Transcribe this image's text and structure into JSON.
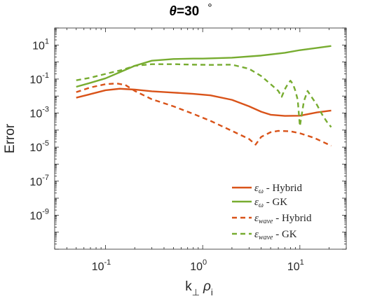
{
  "chart_data": {
    "type": "line",
    "title_var": "θ",
    "title_value": "=30",
    "title_unit": "°",
    "xlabel": "k",
    "xlabel_sub1": "⊥",
    "xlabel_rho": "ρ",
    "xlabel_sub2": "i",
    "ylabel": "Error",
    "xscale": "log",
    "yscale": "log",
    "xlim": [
      0.03,
      30
    ],
    "ylim": [
      1e-11,
      100
    ],
    "x_ticks": [
      {
        "value": 0.1,
        "base": "10",
        "exp": "-1"
      },
      {
        "value": 1,
        "base": "10",
        "exp": "0"
      },
      {
        "value": 10,
        "base": "10",
        "exp": "1"
      }
    ],
    "y_ticks": [
      {
        "value": 10,
        "base": "10",
        "exp": "1"
      },
      {
        "value": 0.1,
        "base": "10",
        "exp": "-1"
      },
      {
        "value": 0.001,
        "base": "10",
        "exp": "-3"
      },
      {
        "value": 1e-05,
        "base": "10",
        "exp": "-5"
      },
      {
        "value": 1e-07,
        "base": "10",
        "exp": "-7"
      },
      {
        "value": 1e-09,
        "base": "10",
        "exp": "-9"
      }
    ],
    "legend_position": "bottom-right",
    "grid": false,
    "series": [
      {
        "name": "ε_ω - Hybrid",
        "name_sym": "ε",
        "name_sub": "ω",
        "name_rest": " - Hybrid",
        "color": "#D95319",
        "dash": "solid",
        "x": [
          0.05,
          0.07,
          0.1,
          0.14,
          0.2,
          0.3,
          0.5,
          0.8,
          1.2,
          2,
          3,
          4,
          5,
          7,
          10,
          15,
          21
        ],
        "y": [
          0.008,
          0.013,
          0.022,
          0.027,
          0.024,
          0.019,
          0.016,
          0.0135,
          0.011,
          0.006,
          0.0025,
          0.0012,
          0.0008,
          0.00068,
          0.0007,
          0.0011,
          0.0014
        ]
      },
      {
        "name": "ε_ω - GK",
        "name_sym": "ε",
        "name_sub": "ω",
        "name_rest": " - GK",
        "color": "#77AC30",
        "dash": "solid",
        "x": [
          0.05,
          0.07,
          0.1,
          0.14,
          0.2,
          0.3,
          0.5,
          0.8,
          1,
          2,
          4,
          7,
          10,
          15,
          21
        ],
        "y": [
          0.035,
          0.06,
          0.11,
          0.25,
          0.6,
          1.2,
          1.5,
          1.6,
          1.6,
          1.8,
          2.4,
          3.5,
          5.0,
          6.8,
          8.8
        ]
      },
      {
        "name": "ε_wave - Hybrid",
        "name_sym": "ε",
        "name_sub": "wave",
        "name_rest": " - Hybrid",
        "color": "#D95319",
        "dash": "dashed",
        "x": [
          0.05,
          0.07,
          0.1,
          0.13,
          0.16,
          0.2,
          0.3,
          0.5,
          0.8,
          1.2,
          2,
          3,
          3.5,
          4,
          5,
          6,
          8,
          10,
          14,
          21
        ],
        "y": [
          0.017,
          0.032,
          0.05,
          0.055,
          0.045,
          0.02,
          0.0065,
          0.0025,
          0.0009,
          0.00035,
          9e-05,
          3e-05,
          1.4e-05,
          4e-05,
          7.5e-05,
          9e-05,
          8.5e-05,
          6.5e-05,
          3.5e-05,
          1.2e-05
        ]
      },
      {
        "name": "ε_wave - GK",
        "name_sym": "ε",
        "name_sub": "wave",
        "name_rest": " - GK",
        "color": "#77AC30",
        "dash": "dashed",
        "x": [
          0.05,
          0.07,
          0.1,
          0.15,
          0.2,
          0.3,
          0.5,
          0.8,
          1.2,
          2,
          3,
          4,
          5,
          6,
          6.5,
          7,
          7.5,
          8,
          8.5,
          9,
          9.5,
          10,
          11,
          12,
          13,
          15,
          17,
          19,
          21
        ],
        "y": [
          0.085,
          0.12,
          0.2,
          0.35,
          0.6,
          0.75,
          0.75,
          0.7,
          0.68,
          0.7,
          0.4,
          0.15,
          0.05,
          0.02,
          0.009,
          0.025,
          0.05,
          0.08,
          0.05,
          0.02,
          0.006,
          0.00017,
          0.005,
          0.02,
          0.01,
          0.003,
          0.0008,
          0.0003,
          0.00015
        ]
      }
    ]
  }
}
